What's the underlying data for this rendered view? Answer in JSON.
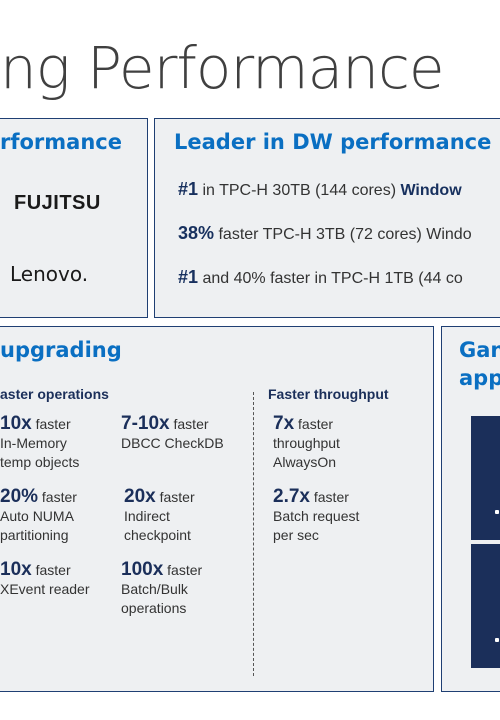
{
  "title": "ng Performance",
  "panel1": {
    "heading": "rformance",
    "logos": [
      "FUJITSU",
      "Lenovo."
    ]
  },
  "panel2": {
    "heading": "Leader in DW performance",
    "lines": [
      {
        "num": "#1",
        "text": " in TPC-H 30TB (144 cores) ",
        "bold": "Window"
      },
      {
        "num": "38%",
        "text": "  faster TPC-H 3TB (72 cores) Windo",
        "bold": ""
      },
      {
        "num": "#1",
        "text": " and 40% faster in TPC-H 1TB (44 co",
        "bold": ""
      }
    ]
  },
  "panel3": {
    "heading": "upgrading",
    "col1_head": "aster operations",
    "col3_head": "Faster throughput",
    "stats": [
      {
        "big": "10x",
        "fast": " faster",
        "l1": "In-Memory",
        "l2": "temp objects"
      },
      {
        "big": "7-10x",
        "fast": " faster",
        "l1": "DBCC CheckDB",
        "l2": ""
      },
      {
        "big": "7x",
        "fast": " faster",
        "l1": "throughput",
        "l2": "AlwaysOn"
      },
      {
        "big": "20%",
        "fast": "  faster",
        "l1": "Auto NUMA",
        "l2": "partitioning"
      },
      {
        "big": "20x",
        "fast": " faster",
        "l1": "Indirect",
        "l2": "checkpoint"
      },
      {
        "big": "2.7x",
        "fast": " faster",
        "l1": "Batch request",
        "l2": "per sec"
      },
      {
        "big": "10x",
        "fast": " faster",
        "l1": "XEvent reader",
        "l2": ""
      },
      {
        "big": "100x",
        "fast": " faster",
        "l1": "Batch/Bulk",
        "l2": "operations"
      }
    ]
  },
  "panel4": {
    "heading_l1": "Gan",
    "heading_l2": "app"
  },
  "colors": {
    "accent": "#0a6fc2",
    "navy": "#1b2f5a",
    "panel": "#eef0f2"
  }
}
